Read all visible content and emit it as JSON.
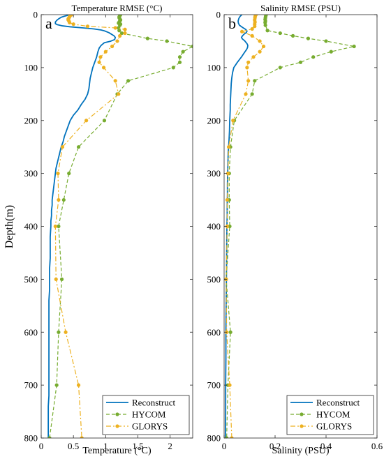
{
  "figure": {
    "ylabel": "Depth(m)"
  },
  "chart_data": [
    {
      "type": "line",
      "panel_letter": "a",
      "title": "Temperature RMSE (°C)",
      "xlabel": "Temperature (°C)",
      "ylabel": "Depth(m)",
      "xlim": [
        0,
        2.35
      ],
      "ylim": [
        800,
        0
      ],
      "y_reversed": true,
      "xticks": [
        0,
        0.5,
        1,
        1.5,
        2
      ],
      "xtick_labels": [
        "0",
        "0.5",
        "1",
        "1.5",
        "2"
      ],
      "yticks": [
        0,
        100,
        200,
        300,
        400,
        500,
        600,
        700,
        800
      ],
      "ytick_labels": [
        "0",
        "100",
        "200",
        "300",
        "400",
        "500",
        "600",
        "700",
        "800"
      ],
      "legend_position": "bottom-right",
      "series": [
        {
          "name": "Reconstruct",
          "color": "#0072bd",
          "style": "solid",
          "marker": "none",
          "points": [
            [
              0.42,
              1
            ],
            [
              0.36,
              3
            ],
            [
              0.31,
              5
            ],
            [
              0.27,
              8
            ],
            [
              0.24,
              11
            ],
            [
              0.22,
              14
            ],
            [
              0.22,
              17
            ],
            [
              0.25,
              19
            ],
            [
              0.32,
              21
            ],
            [
              0.45,
              23
            ],
            [
              0.65,
              25
            ],
            [
              0.82,
              27
            ],
            [
              0.93,
              29
            ],
            [
              0.99,
              31
            ],
            [
              1.05,
              34
            ],
            [
              1.09,
              37
            ],
            [
              1.13,
              40
            ],
            [
              1.15,
              43
            ],
            [
              1.14,
              47
            ],
            [
              1.08,
              50
            ],
            [
              0.98,
              53
            ],
            [
              0.93,
              58
            ],
            [
              0.9,
              63
            ],
            [
              0.88,
              70
            ],
            [
              0.86,
              80
            ],
            [
              0.83,
              90
            ],
            [
              0.8,
              100
            ],
            [
              0.78,
              110
            ],
            [
              0.76,
              120
            ],
            [
              0.75,
              130
            ],
            [
              0.74,
              140
            ],
            [
              0.72,
              150
            ],
            [
              0.68,
              160
            ],
            [
              0.62,
              170
            ],
            [
              0.57,
              180
            ],
            [
              0.5,
              190
            ],
            [
              0.45,
              200
            ],
            [
              0.42,
              210
            ],
            [
              0.39,
              220
            ],
            [
              0.36,
              230
            ],
            [
              0.34,
              240
            ],
            [
              0.31,
              250
            ],
            [
              0.29,
              260
            ],
            [
              0.27,
              270
            ],
            [
              0.25,
              280
            ],
            [
              0.23,
              290
            ],
            [
              0.22,
              300
            ],
            [
              0.21,
              310
            ],
            [
              0.2,
              320
            ],
            [
              0.19,
              330
            ],
            [
              0.18,
              340
            ],
            [
              0.17,
              350
            ],
            [
              0.17,
              360
            ],
            [
              0.16,
              370
            ],
            [
              0.16,
              380
            ],
            [
              0.15,
              390
            ],
            [
              0.15,
              400
            ],
            [
              0.14,
              420
            ],
            [
              0.14,
              440
            ],
            [
              0.14,
              460
            ],
            [
              0.13,
              480
            ],
            [
              0.13,
              500
            ],
            [
              0.13,
              520
            ],
            [
              0.12,
              540
            ],
            [
              0.12,
              560
            ],
            [
              0.12,
              580
            ],
            [
              0.12,
              600
            ],
            [
              0.12,
              620
            ],
            [
              0.12,
              640
            ],
            [
              0.12,
              660
            ],
            [
              0.12,
              680
            ],
            [
              0.12,
              700
            ],
            [
              0.12,
              720
            ],
            [
              0.11,
              740
            ],
            [
              0.11,
              760
            ],
            [
              0.11,
              780
            ],
            [
              0.11,
              800
            ]
          ]
        },
        {
          "name": "HYCOM",
          "color": "#77ac30",
          "style": "dashed",
          "marker": "circle",
          "points": [
            [
              1.23,
              0
            ],
            [
              1.22,
              2
            ],
            [
              1.21,
              4
            ],
            [
              1.21,
              6
            ],
            [
              1.22,
              8
            ],
            [
              1.23,
              10
            ],
            [
              1.22,
              12
            ],
            [
              1.21,
              14
            ],
            [
              1.2,
              16
            ],
            [
              1.23,
              18
            ],
            [
              1.22,
              20
            ],
            [
              1.2,
              25
            ],
            [
              1.21,
              30
            ],
            [
              1.25,
              35
            ],
            [
              1.65,
              45
            ],
            [
              1.95,
              50
            ],
            [
              2.35,
              60
            ],
            [
              2.2,
              70
            ],
            [
              2.15,
              80
            ],
            [
              2.15,
              90
            ],
            [
              2.05,
              100
            ],
            [
              1.35,
              125
            ],
            [
              1.18,
              150
            ],
            [
              0.98,
              200
            ],
            [
              0.58,
              250
            ],
            [
              0.43,
              300
            ],
            [
              0.35,
              350
            ],
            [
              0.27,
              400
            ],
            [
              0.32,
              500
            ],
            [
              0.27,
              600
            ],
            [
              0.24,
              700
            ],
            [
              0.13,
              800
            ]
          ]
        },
        {
          "name": "GLORYS",
          "color": "#edb120",
          "style": "dashdot",
          "marker": "circle",
          "points": [
            [
              0.47,
              0
            ],
            [
              0.45,
              2
            ],
            [
              0.44,
              4
            ],
            [
              0.43,
              6
            ],
            [
              0.42,
              8
            ],
            [
              0.42,
              10
            ],
            [
              0.43,
              12
            ],
            [
              0.44,
              15
            ],
            [
              0.5,
              18
            ],
            [
              0.72,
              22
            ],
            [
              1.15,
              25
            ],
            [
              1.3,
              28
            ],
            [
              1.3,
              35
            ],
            [
              1.22,
              40
            ],
            [
              1.18,
              50
            ],
            [
              1.1,
              60
            ],
            [
              1.0,
              70
            ],
            [
              0.92,
              80
            ],
            [
              0.9,
              90
            ],
            [
              0.97,
              100
            ],
            [
              1.15,
              125
            ],
            [
              1.2,
              150
            ],
            [
              0.7,
              200
            ],
            [
              0.33,
              250
            ],
            [
              0.26,
              300
            ],
            [
              0.27,
              350
            ],
            [
              0.22,
              400
            ],
            [
              0.23,
              500
            ],
            [
              0.38,
              600
            ],
            [
              0.58,
              700
            ],
            [
              0.63,
              800
            ]
          ]
        }
      ]
    },
    {
      "type": "line",
      "panel_letter": "b",
      "title": "Salinity RMSE (PSU)",
      "xlabel": "Salinity (PSU)",
      "ylabel": "",
      "xlim": [
        0,
        0.6
      ],
      "ylim": [
        800,
        0
      ],
      "y_reversed": true,
      "xticks": [
        0,
        0.2,
        0.4,
        0.6
      ],
      "xtick_labels": [
        "0",
        "0.2",
        "0.4",
        "0.6"
      ],
      "yticks": [
        0,
        100,
        200,
        300,
        400,
        500,
        600,
        700,
        800
      ],
      "ytick_labels": [
        "0",
        "100",
        "200",
        "300",
        "400",
        "500",
        "600",
        "700",
        "800"
      ],
      "legend_position": "bottom-right",
      "series": [
        {
          "name": "Reconstruct",
          "color": "#0072bd",
          "style": "solid",
          "marker": "none",
          "points": [
            [
              0.07,
              0
            ],
            [
              0.063,
              3
            ],
            [
              0.058,
              7
            ],
            [
              0.055,
              12
            ],
            [
              0.056,
              16
            ],
            [
              0.06,
              20
            ],
            [
              0.072,
              24
            ],
            [
              0.085,
              28
            ],
            [
              0.09,
              31
            ],
            [
              0.087,
              34
            ],
            [
              0.078,
              37
            ],
            [
              0.072,
              40
            ],
            [
              0.068,
              43
            ],
            [
              0.072,
              46
            ],
            [
              0.08,
              49
            ],
            [
              0.085,
              52
            ],
            [
              0.09,
              55
            ],
            [
              0.093,
              58
            ],
            [
              0.092,
              62
            ],
            [
              0.088,
              66
            ],
            [
              0.082,
              70
            ],
            [
              0.075,
              75
            ],
            [
              0.068,
              80
            ],
            [
              0.06,
              85
            ],
            [
              0.052,
              90
            ],
            [
              0.045,
              95
            ],
            [
              0.038,
              100
            ],
            [
              0.033,
              110
            ],
            [
              0.03,
              120
            ],
            [
              0.028,
              130
            ],
            [
              0.027,
              140
            ],
            [
              0.026,
              150
            ],
            [
              0.025,
              160
            ],
            [
              0.024,
              170
            ],
            [
              0.024,
              180
            ],
            [
              0.023,
              190
            ],
            [
              0.022,
              200
            ],
            [
              0.021,
              220
            ],
            [
              0.019,
              240
            ],
            [
              0.016,
              260
            ],
            [
              0.015,
              280
            ],
            [
              0.014,
              300
            ],
            [
              0.013,
              320
            ],
            [
              0.013,
              340
            ],
            [
              0.012,
              360
            ],
            [
              0.012,
              380
            ],
            [
              0.011,
              400
            ],
            [
              0.01,
              450
            ],
            [
              0.009,
              500
            ],
            [
              0.008,
              550
            ],
            [
              0.007,
              600
            ],
            [
              0.007,
              650
            ],
            [
              0.006,
              700
            ],
            [
              0.006,
              750
            ],
            [
              0.005,
              800
            ]
          ]
        },
        {
          "name": "HYCOM",
          "color": "#77ac30",
          "style": "dashed",
          "marker": "circle",
          "points": [
            [
              0.165,
              0
            ],
            [
              0.163,
              3
            ],
            [
              0.162,
              6
            ],
            [
              0.161,
              9
            ],
            [
              0.162,
              12
            ],
            [
              0.161,
              15
            ],
            [
              0.162,
              20
            ],
            [
              0.17,
              30
            ],
            [
              0.22,
              35
            ],
            [
              0.27,
              40
            ],
            [
              0.33,
              45
            ],
            [
              0.4,
              50
            ],
            [
              0.51,
              60
            ],
            [
              0.42,
              70
            ],
            [
              0.35,
              80
            ],
            [
              0.3,
              90
            ],
            [
              0.22,
              100
            ],
            [
              0.12,
              125
            ],
            [
              0.11,
              150
            ],
            [
              0.04,
              200
            ],
            [
              0.025,
              250
            ],
            [
              0.02,
              300
            ],
            [
              0.02,
              350
            ],
            [
              0.022,
              400
            ],
            [
              0.008,
              500
            ],
            [
              0.025,
              600
            ],
            [
              0.015,
              700
            ],
            [
              0.01,
              800
            ]
          ]
        },
        {
          "name": "GLORYS",
          "color": "#edb120",
          "style": "dashdot",
          "marker": "circle",
          "points": [
            [
              0.125,
              0
            ],
            [
              0.122,
              3
            ],
            [
              0.121,
              6
            ],
            [
              0.12,
              10
            ],
            [
              0.121,
              14
            ],
            [
              0.12,
              18
            ],
            [
              0.12,
              22
            ],
            [
              0.11,
              27
            ],
            [
              0.07,
              32
            ],
            [
              0.11,
              40
            ],
            [
              0.14,
              50
            ],
            [
              0.155,
              60
            ],
            [
              0.14,
              70
            ],
            [
              0.115,
              80
            ],
            [
              0.095,
              90
            ],
            [
              0.09,
              100
            ],
            [
              0.095,
              125
            ],
            [
              0.085,
              150
            ],
            [
              0.035,
              200
            ],
            [
              0.018,
              250
            ],
            [
              0.015,
              300
            ],
            [
              0.012,
              350
            ],
            [
              0.012,
              400
            ],
            [
              0.008,
              500
            ],
            [
              0.01,
              600
            ],
            [
              0.022,
              700
            ],
            [
              0.03,
              800
            ]
          ]
        }
      ]
    }
  ]
}
